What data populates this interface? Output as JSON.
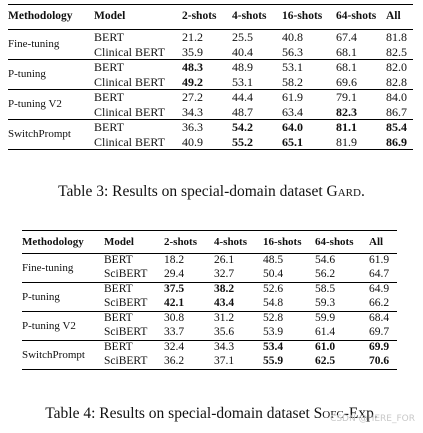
{
  "table3": {
    "headers": [
      "Methodology",
      "Model",
      "2-shots",
      "4-shots",
      "16-shots",
      "64-shots",
      "All"
    ],
    "groups": [
      {
        "method": "Fine-tuning",
        "rows": [
          {
            "model": "BERT",
            "values": [
              "21.2",
              "25.5",
              "40.8",
              "67.4",
              "81.8"
            ],
            "bold": []
          },
          {
            "model": "Clinical BERT",
            "values": [
              "35.9",
              "40.4",
              "56.3",
              "68.1",
              "82.5"
            ],
            "bold": []
          }
        ]
      },
      {
        "method": "P-tuning",
        "rows": [
          {
            "model": "BERT",
            "values": [
              "48.3",
              "48.9",
              "53.1",
              "68.1",
              "82.0"
            ],
            "bold": [
              0
            ]
          },
          {
            "model": "Clinical BERT",
            "values": [
              "49.2",
              "53.1",
              "58.2",
              "69.6",
              "82.8"
            ],
            "bold": [
              0
            ]
          }
        ]
      },
      {
        "method": "P-tuning V2",
        "rows": [
          {
            "model": "BERT",
            "values": [
              "27.2",
              "44.4",
              "61.9",
              "79.1",
              "84.0"
            ],
            "bold": []
          },
          {
            "model": "Clinical BERT",
            "values": [
              "34.3",
              "48.7",
              "63.4",
              "82.3",
              "86.7"
            ],
            "bold": [
              3
            ]
          }
        ]
      },
      {
        "method": "SwitchPrompt",
        "rows": [
          {
            "model": "BERT",
            "values": [
              "36.3",
              "54.2",
              "64.0",
              "81.1",
              "85.4"
            ],
            "bold": [
              1,
              2,
              3,
              4
            ]
          },
          {
            "model": "Clinical BERT",
            "values": [
              "40.9",
              "55.2",
              "65.1",
              "81.9",
              "86.9"
            ],
            "bold": [
              1,
              2,
              4
            ]
          }
        ]
      }
    ],
    "caption_prefix": "Table 3: Results on special-domain dataset G",
    "caption_sc": "ard",
    "caption_suffix": "."
  },
  "table4": {
    "headers": [
      "Methodology",
      "Model",
      "2-shots",
      "4-shots",
      "16-shots",
      "64-shots",
      "All"
    ],
    "groups": [
      {
        "method": "Fine-tuning",
        "rows": [
          {
            "model": "BERT",
            "values": [
              "18.2",
              "26.1",
              "48.5",
              "54.6",
              "61.9"
            ],
            "bold": []
          },
          {
            "model": "SciBERT",
            "values": [
              "29.4",
              "32.7",
              "50.4",
              "56.2",
              "64.7"
            ],
            "bold": []
          }
        ]
      },
      {
        "method": "P-tuning",
        "rows": [
          {
            "model": "BERT",
            "values": [
              "37.5",
              "38.2",
              "52.6",
              "58.5",
              "64.9"
            ],
            "bold": [
              0,
              1
            ]
          },
          {
            "model": "SciBERT",
            "values": [
              "42.1",
              "43.4",
              "54.8",
              "59.3",
              "66.2"
            ],
            "bold": [
              0,
              1
            ]
          }
        ]
      },
      {
        "method": "P-tuning V2",
        "rows": [
          {
            "model": "BERT",
            "values": [
              "30.8",
              "31.2",
              "52.8",
              "59.9",
              "68.4"
            ],
            "bold": []
          },
          {
            "model": "SciBERT",
            "values": [
              "33.7",
              "35.6",
              "53.9",
              "61.4",
              "69.7"
            ],
            "bold": []
          }
        ]
      },
      {
        "method": "SwitchPrompt",
        "rows": [
          {
            "model": "BERT",
            "values": [
              "32.4",
              "34.3",
              "53.4",
              "61.0",
              "69.9"
            ],
            "bold": [
              2,
              3,
              4
            ]
          },
          {
            "model": "SciBERT",
            "values": [
              "36.2",
              "37.1",
              "55.9",
              "62.5",
              "70.6"
            ],
            "bold": [
              2,
              3,
              4
            ]
          }
        ]
      }
    ],
    "caption_prefix": "Table 4: Results on special-domain dataset S",
    "caption_sc": "ofc",
    "caption_suffix": "-Exp."
  },
  "watermark": "CSDN @HERE_FOR"
}
